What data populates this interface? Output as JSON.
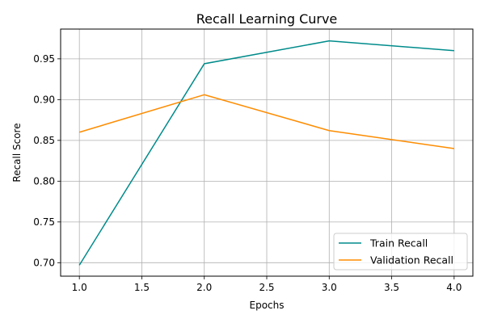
{
  "chart_data": {
    "type": "line",
    "title": "Recall Learning Curve",
    "xlabel": "Epochs",
    "ylabel": "Recall Score",
    "xlim": [
      0.85,
      4.15
    ],
    "ylim": [
      0.6835,
      0.9865
    ],
    "xticks": [
      1.0,
      1.5,
      2.0,
      2.5,
      3.0,
      3.5,
      4.0
    ],
    "xtick_labels": [
      "1.0",
      "1.5",
      "2.0",
      "2.5",
      "3.0",
      "3.5",
      "4.0"
    ],
    "yticks": [
      0.7,
      0.75,
      0.8,
      0.85,
      0.9,
      0.95
    ],
    "ytick_labels": [
      "0.70",
      "0.75",
      "0.80",
      "0.85",
      "0.90",
      "0.95"
    ],
    "grid": true,
    "legend_position": "lower-right",
    "series": [
      {
        "name": "Train Recall",
        "color": "#008b8b",
        "x": [
          1,
          2,
          3,
          4
        ],
        "y": [
          0.697,
          0.944,
          0.972,
          0.96
        ]
      },
      {
        "name": "Validation Recall",
        "color": "#ff8c00",
        "x": [
          1,
          2,
          3,
          4
        ],
        "y": [
          0.86,
          0.906,
          0.862,
          0.84
        ]
      }
    ]
  }
}
